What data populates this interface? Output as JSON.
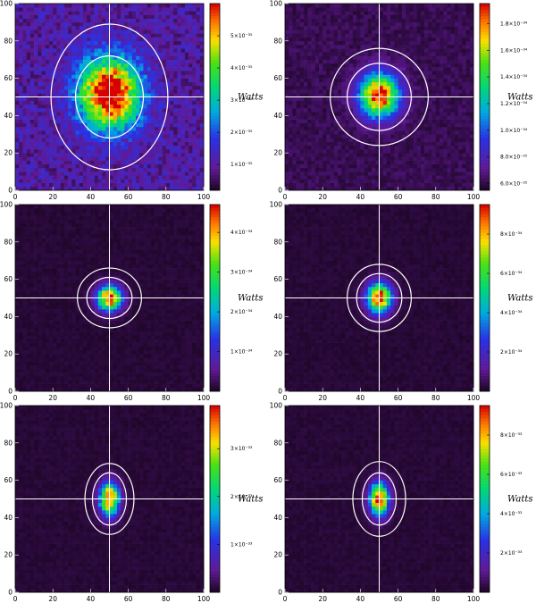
{
  "chart_data": [
    {
      "type": "heatmap",
      "panel": "top-left",
      "x_range": [
        0,
        100
      ],
      "y_range": [
        0,
        100
      ],
      "x_ticks": [
        "0",
        "20",
        "40",
        "60",
        "80",
        "100"
      ],
      "y_ticks": [
        "0",
        "20",
        "40",
        "60",
        "80",
        "100"
      ],
      "crosshair": {
        "x": 50,
        "y": 50
      },
      "center": {
        "x": 50,
        "y": 52
      },
      "ellipses": [
        {
          "rx": 18,
          "ry": 22
        },
        {
          "rx": 31,
          "ry": 39
        }
      ],
      "colorbar": {
        "unit": "Watts",
        "range": [
          2e-36,
          6e-35
        ],
        "ticks": [
          "1×10⁻³⁵",
          "2×10⁻³⁵",
          "3×10⁻³⁵",
          "4×10⁻³⁵",
          "5×10⁻³⁵"
        ],
        "tick_values": [
          1e-35,
          2e-35,
          3e-35,
          4e-35,
          5e-35
        ]
      },
      "source_spread": {
        "sx": 11,
        "sy": 13
      },
      "background": 0.14
    },
    {
      "type": "heatmap",
      "panel": "top-right",
      "x_range": [
        0,
        100
      ],
      "y_range": [
        0,
        100
      ],
      "x_ticks": [
        "0",
        "20",
        "40",
        "60",
        "80",
        "100"
      ],
      "y_ticks": [
        "0",
        "20",
        "40",
        "60",
        "80",
        "100"
      ],
      "crosshair": {
        "x": 50,
        "y": 50
      },
      "center": {
        "x": 50,
        "y": 51
      },
      "ellipses": [
        {
          "rx": 17,
          "ry": 18
        },
        {
          "rx": 26,
          "ry": 26
        }
      ],
      "colorbar": {
        "unit": "Watts",
        "range": [
          5.5e-35,
          1.95e-34
        ],
        "ticks": [
          "6.0×10⁻³⁵",
          "8.0×10⁻³⁵",
          "1.0×10⁻³⁴",
          "1.2×10⁻³⁴",
          "1.4×10⁻³⁴",
          "1.6×10⁻³⁴",
          "1.8×10⁻³⁴"
        ],
        "tick_values": [
          6e-35,
          8e-35,
          1e-34,
          1.2e-34,
          1.4e-34,
          1.6e-34,
          1.8e-34
        ]
      },
      "source_spread": {
        "sx": 7,
        "sy": 8
      },
      "background": 0.05
    },
    {
      "type": "heatmap",
      "panel": "middle-left",
      "x_range": [
        0,
        100
      ],
      "y_range": [
        0,
        100
      ],
      "x_ticks": [
        "0",
        "20",
        "40",
        "60",
        "80",
        "100"
      ],
      "y_ticks": [
        "0",
        "20",
        "40",
        "60",
        "80",
        "100"
      ],
      "crosshair": {
        "x": 50,
        "y": 50
      },
      "center": {
        "x": 50,
        "y": 50
      },
      "ellipses": [
        {
          "rx": 12,
          "ry": 11
        },
        {
          "rx": 17,
          "ry": 16
        }
      ],
      "colorbar": {
        "unit": "Watts",
        "range": [
          0,
          4.7e-34
        ],
        "ticks": [
          "1×10⁻³⁴",
          "2×10⁻³⁴",
          "3×10⁻³⁴",
          "4×10⁻³⁴"
        ],
        "tick_values": [
          1e-34,
          2e-34,
          3e-34,
          4e-34
        ]
      },
      "source_spread": {
        "sx": 4.5,
        "sy": 4.5
      },
      "background": 0.02
    },
    {
      "type": "heatmap",
      "panel": "middle-right",
      "x_range": [
        0,
        100
      ],
      "y_range": [
        0,
        100
      ],
      "x_ticks": [
        "0",
        "20",
        "40",
        "60",
        "80",
        "100"
      ],
      "y_ticks": [
        "0",
        "20",
        "40",
        "60",
        "80",
        "100"
      ],
      "crosshair": {
        "x": 50,
        "y": 50
      },
      "center": {
        "x": 50,
        "y": 50
      },
      "ellipses": [
        {
          "rx": 12,
          "ry": 13
        },
        {
          "rx": 17,
          "ry": 18
        }
      ],
      "colorbar": {
        "unit": "Watts",
        "range": [
          0,
          9.5e-34
        ],
        "ticks": [
          "2×10⁻³⁴",
          "4×10⁻³⁴",
          "6×10⁻³⁴",
          "8×10⁻³⁴"
        ],
        "tick_values": [
          2e-34,
          4e-34,
          6e-34,
          8e-34
        ]
      },
      "source_spread": {
        "sx": 4.5,
        "sy": 5.5
      },
      "background": 0.02
    },
    {
      "type": "heatmap",
      "panel": "bottom-left",
      "x_range": [
        0,
        100
      ],
      "y_range": [
        0,
        100
      ],
      "x_ticks": [
        "0",
        "20",
        "40",
        "60",
        "80",
        "100"
      ],
      "y_ticks": [
        "0",
        "20",
        "40",
        "60",
        "80",
        "100"
      ],
      "crosshair": {
        "x": 50,
        "y": 50
      },
      "center": {
        "x": 50,
        "y": 50
      },
      "ellipses": [
        {
          "rx": 9,
          "ry": 14
        },
        {
          "rx": 13,
          "ry": 19
        }
      ],
      "colorbar": {
        "unit": "Watts",
        "range": [
          0,
          3.9e-33
        ],
        "ticks": [
          "1×10⁻³³",
          "2×10⁻³³",
          "3×10⁻³³"
        ],
        "tick_values": [
          1e-33,
          2e-33,
          3e-33
        ]
      },
      "source_spread": {
        "sx": 3.5,
        "sy": 6
      },
      "background": 0.02
    },
    {
      "type": "heatmap",
      "panel": "bottom-right",
      "x_range": [
        0,
        100
      ],
      "y_range": [
        0,
        100
      ],
      "x_ticks": [
        "0",
        "20",
        "40",
        "60",
        "80",
        "100"
      ],
      "y_ticks": [
        "0",
        "20",
        "40",
        "60",
        "80",
        "100"
      ],
      "crosshair": {
        "x": 50,
        "y": 50
      },
      "center": {
        "x": 50,
        "y": 50
      },
      "ellipses": [
        {
          "rx": 9,
          "ry": 14
        },
        {
          "rx": 14,
          "ry": 20
        }
      ],
      "colorbar": {
        "unit": "Watts",
        "range": [
          0,
          9.5e-33
        ],
        "ticks": [
          "2×10⁻³³",
          "4×10⁻³³",
          "6×10⁻³³",
          "8×10⁻³³"
        ],
        "tick_values": [
          2e-33,
          4e-33,
          6e-33,
          8e-33
        ]
      },
      "source_spread": {
        "sx": 3.5,
        "sy": 6
      },
      "background": 0.02
    }
  ]
}
